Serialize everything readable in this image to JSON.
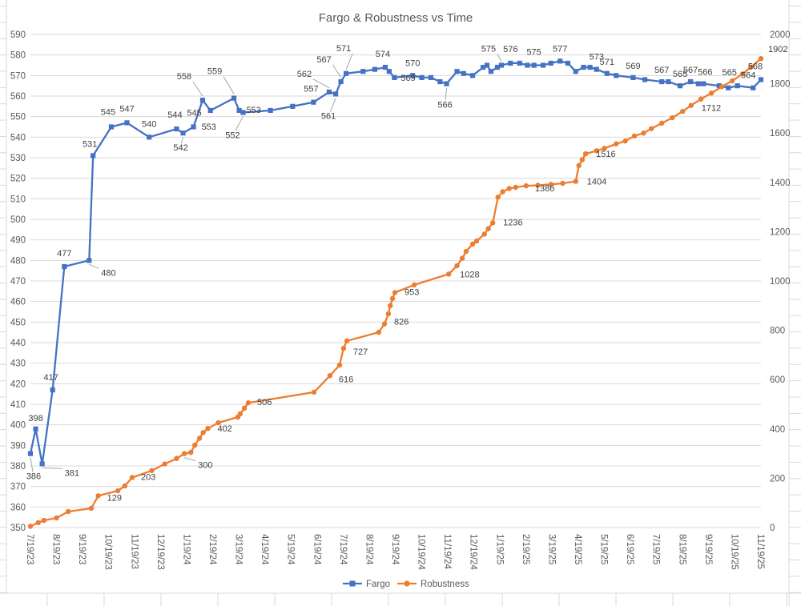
{
  "title": "Fargo & Robustness vs Time",
  "colors": {
    "fargo": "#4472C4",
    "robustness": "#ED7D31",
    "gridline": "#D9D9D9",
    "axis_text": "#595959",
    "data_label_text": "#404040",
    "leader_line": "#A6A6A6",
    "sheet_line": "#D8D8D8",
    "background": "#FFFFFF"
  },
  "chart_data": {
    "type": "line",
    "title": "Fargo & Robustness vs Time",
    "grid": "horizontal",
    "x_axis": {
      "labels": [
        "7/19/23",
        "8/19/23",
        "9/19/23",
        "10/19/23",
        "11/19/23",
        "12/19/23",
        "1/19/24",
        "2/19/24",
        "3/19/24",
        "4/19/24",
        "5/19/24",
        "6/19/24",
        "7/19/24",
        "8/19/24",
        "9/19/24",
        "10/19/24",
        "11/19/24",
        "12/19/24",
        "1/19/25",
        "2/19/25",
        "3/19/25",
        "4/19/25",
        "5/19/25",
        "6/19/25",
        "7/19/25",
        "8/19/25",
        "9/19/25",
        "10/19/25",
        "11/19/25"
      ]
    },
    "y_axis_left": {
      "min": 350,
      "max": 590,
      "step": 10,
      "tick_labels": [
        "590",
        "580",
        "570",
        "560",
        "550",
        "540",
        "530",
        "520",
        "510",
        "500",
        "490",
        "480",
        "470",
        "460",
        "450",
        "440",
        "430",
        "420",
        "410",
        "400",
        "390",
        "380",
        "370",
        "360",
        "350"
      ]
    },
    "y_axis_right": {
      "min": 0,
      "max": 2000,
      "step": 200,
      "tick_labels": [
        "2000",
        "1800",
        "1600",
        "1400",
        "1200",
        "1000",
        "800",
        "600",
        "400",
        "200",
        "0"
      ]
    },
    "legend": {
      "position": "bottom",
      "items": [
        {
          "label": "Fargo",
          "marker": "square",
          "color": "#4472C4"
        },
        {
          "label": "Robustness",
          "marker": "circle",
          "color": "#ED7D31"
        }
      ]
    },
    "series": [
      {
        "name": "Fargo",
        "axis": "left",
        "marker": "square",
        "color": "#4472C4",
        "points": [
          [
            0.0,
            386,
            "386",
            4,
            32,
            "m",
            1
          ],
          [
            0.2,
            398,
            "398",
            0,
            -10,
            "m",
            0
          ],
          [
            0.45,
            381,
            "381",
            28,
            15,
            "s",
            1
          ],
          [
            0.85,
            417,
            "417",
            -2,
            -12,
            "m",
            0
          ],
          [
            1.3,
            477,
            "477",
            0,
            -13,
            "m",
            0
          ],
          [
            2.25,
            480,
            "480",
            15,
            19,
            "s",
            1
          ],
          [
            2.4,
            531,
            "531",
            -4,
            -11,
            "m",
            0
          ],
          [
            3.1,
            545,
            "545",
            -4,
            -15,
            "m",
            0
          ],
          [
            3.7,
            547,
            "547",
            0,
            -14,
            "m",
            0
          ],
          [
            4.55,
            540,
            "540",
            0,
            -13,
            "m",
            0
          ],
          [
            5.6,
            544,
            "544",
            -2,
            -14,
            "m",
            0
          ],
          [
            5.85,
            542,
            "542",
            -3,
            22,
            "m",
            1
          ],
          [
            6.25,
            545,
            "545",
            1,
            -14,
            "m",
            0
          ],
          [
            6.6,
            558,
            "558",
            -23,
            -26,
            "m",
            1
          ],
          [
            6.9,
            553,
            "553",
            -2,
            24,
            "m",
            0
          ],
          [
            7.8,
            559,
            "559",
            -24,
            -30,
            "m",
            1
          ],
          [
            8.0,
            553,
            "553",
            9,
            3,
            "s",
            0
          ],
          [
            8.15,
            552,
            "552",
            -13,
            32,
            "m",
            1
          ],
          [
            9.2,
            553
          ],
          [
            10.05,
            555
          ],
          [
            10.85,
            557,
            "557",
            -3,
            -13,
            "m",
            0
          ],
          [
            11.45,
            562,
            "562",
            -31,
            -19,
            "m",
            1
          ],
          [
            11.7,
            561,
            "561",
            -9,
            31,
            "m",
            1
          ],
          [
            11.9,
            567,
            "567",
            -21,
            -24,
            "m",
            1
          ],
          [
            12.1,
            571,
            "571",
            -3,
            -28,
            "m",
            1
          ],
          [
            12.75,
            572
          ],
          [
            13.2,
            573
          ],
          [
            13.6,
            574,
            "574",
            -3,
            -13,
            "m",
            0
          ],
          [
            13.75,
            572
          ],
          [
            13.95,
            569,
            "569",
            8,
            4,
            "s",
            0
          ],
          [
            14.65,
            570,
            "570",
            0,
            -12,
            "m",
            0
          ],
          [
            15.0,
            569
          ],
          [
            15.35,
            569
          ],
          [
            15.7,
            567
          ],
          [
            15.95,
            566,
            "566",
            -2,
            30,
            "m",
            1
          ],
          [
            16.35,
            572
          ],
          [
            16.6,
            571
          ],
          [
            16.95,
            570
          ],
          [
            17.35,
            574
          ],
          [
            17.5,
            575
          ],
          [
            17.65,
            572
          ],
          [
            17.9,
            574
          ],
          [
            18.05,
            575,
            "575",
            -16,
            -17,
            "m",
            1
          ],
          [
            18.4,
            576,
            "576",
            0,
            -14,
            "m",
            0
          ],
          [
            18.75,
            576
          ],
          [
            19.05,
            575
          ],
          [
            19.3,
            575,
            "575",
            0,
            -13,
            "m",
            0
          ],
          [
            19.65,
            575
          ],
          [
            19.95,
            576
          ],
          [
            20.3,
            577,
            "577",
            0,
            -12,
            "m",
            0
          ],
          [
            20.6,
            576
          ],
          [
            20.9,
            572
          ],
          [
            21.2,
            574
          ],
          [
            21.45,
            574
          ],
          [
            21.7,
            573,
            "573",
            0,
            -12,
            "m",
            0
          ],
          [
            22.1,
            571,
            "571",
            0,
            -11,
            "m",
            0
          ],
          [
            22.45,
            570
          ],
          [
            23.1,
            569,
            "569",
            0,
            -11,
            "m",
            0
          ],
          [
            23.55,
            568
          ],
          [
            24.2,
            567,
            "567",
            0,
            -11,
            "m",
            0
          ],
          [
            24.45,
            567
          ],
          [
            24.9,
            565,
            "565",
            0,
            -11,
            "m",
            0
          ],
          [
            25.3,
            567,
            "567",
            0,
            -11,
            "m",
            0
          ],
          [
            25.6,
            566
          ],
          [
            25.8,
            566,
            "566",
            2,
            -11,
            "m",
            0
          ],
          [
            26.4,
            565
          ],
          [
            26.75,
            564
          ],
          [
            27.1,
            565,
            "565",
            -10,
            -13,
            "m",
            0
          ],
          [
            27.7,
            564,
            "564",
            -6,
            -12,
            "m",
            0
          ],
          [
            28.0,
            568,
            "568",
            -7,
            -13,
            "m",
            0
          ]
        ]
      },
      {
        "name": "Robustness",
        "axis": "right",
        "marker": "circle",
        "color": "#ED7D31",
        "points": [
          [
            0.0,
            5
          ],
          [
            0.3,
            20
          ],
          [
            0.52,
            29
          ],
          [
            1.0,
            39
          ],
          [
            1.45,
            65
          ],
          [
            2.33,
            78
          ],
          [
            2.6,
            129,
            "129",
            11,
            6,
            "s",
            0
          ],
          [
            3.35,
            149
          ],
          [
            3.62,
            169
          ],
          [
            3.9,
            203,
            "203",
            11,
            3,
            "s",
            0
          ],
          [
            4.65,
            231
          ],
          [
            5.15,
            258
          ],
          [
            5.6,
            280
          ],
          [
            5.9,
            300,
            "300",
            17,
            18,
            "s",
            1
          ],
          [
            6.15,
            305
          ],
          [
            6.3,
            334
          ],
          [
            6.48,
            362
          ],
          [
            6.62,
            385
          ],
          [
            6.8,
            402,
            "402",
            12,
            4,
            "s",
            0
          ],
          [
            7.2,
            425
          ],
          [
            7.95,
            448
          ],
          [
            8.04,
            461
          ],
          [
            8.2,
            484
          ],
          [
            8.35,
            506,
            "506",
            11,
            3,
            "s",
            0
          ],
          [
            10.87,
            549
          ],
          [
            11.48,
            616,
            "616",
            11,
            8,
            "s",
            0
          ],
          [
            11.85,
            659
          ],
          [
            12.0,
            727,
            "727",
            12,
            8,
            "s",
            0
          ],
          [
            12.13,
            757
          ],
          [
            13.35,
            792
          ],
          [
            13.57,
            826,
            "826",
            12,
            1,
            "s",
            0
          ],
          [
            13.72,
            867
          ],
          [
            13.79,
            900
          ],
          [
            13.88,
            929
          ],
          [
            13.97,
            953,
            "953",
            12,
            3,
            "s",
            0
          ],
          [
            14.71,
            984
          ],
          [
            16.03,
            1028,
            "1028",
            14,
            4,
            "s",
            0
          ],
          [
            16.35,
            1062
          ],
          [
            16.55,
            1092
          ],
          [
            16.7,
            1120
          ],
          [
            16.95,
            1150
          ],
          [
            17.1,
            1162
          ],
          [
            17.4,
            1190
          ],
          [
            17.55,
            1212
          ],
          [
            17.72,
            1236,
            "1236",
            13,
            3,
            "s",
            0
          ],
          [
            17.92,
            1340
          ],
          [
            18.1,
            1362
          ],
          [
            18.35,
            1375
          ],
          [
            18.6,
            1380
          ],
          [
            19.0,
            1386,
            "1386",
            11,
            7,
            "s",
            0
          ],
          [
            19.45,
            1388
          ],
          [
            19.95,
            1392
          ],
          [
            20.4,
            1396
          ],
          [
            20.9,
            1404,
            "1404",
            14,
            4,
            "s",
            0
          ],
          [
            21.02,
            1468
          ],
          [
            21.15,
            1492
          ],
          [
            21.28,
            1516,
            "1516",
            13,
            4,
            "s",
            0
          ],
          [
            21.7,
            1528
          ],
          [
            22.0,
            1538
          ],
          [
            22.45,
            1556
          ],
          [
            22.8,
            1568
          ],
          [
            23.15,
            1588
          ],
          [
            23.5,
            1600
          ],
          [
            23.8,
            1618
          ],
          [
            24.2,
            1640
          ],
          [
            24.6,
            1662
          ],
          [
            25.0,
            1688
          ],
          [
            25.32,
            1712,
            "1712",
            13,
            7,
            "s",
            0
          ],
          [
            25.7,
            1738
          ],
          [
            26.1,
            1762
          ],
          [
            26.5,
            1788
          ],
          [
            26.9,
            1812
          ],
          [
            27.3,
            1840
          ],
          [
            27.62,
            1868
          ],
          [
            28.0,
            1902,
            "1902",
            9,
            -8,
            "s",
            0
          ]
        ]
      }
    ]
  }
}
